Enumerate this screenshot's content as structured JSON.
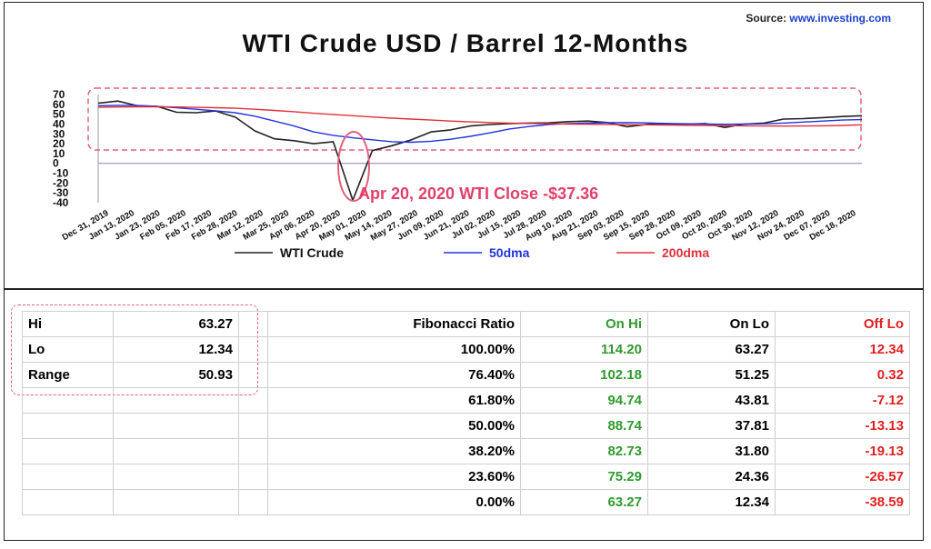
{
  "source": {
    "label": "Source:",
    "url": "www.investing.com"
  },
  "chart_data": {
    "type": "line",
    "title": "WTI Crude USD / Barrel 12-Months",
    "xlabel": "",
    "ylabel": "",
    "ylim": [
      -40,
      70
    ],
    "y_ticks": [
      70,
      60,
      50,
      40,
      30,
      20,
      10,
      0,
      -10,
      -20,
      -30,
      -40
    ],
    "x_tick_labels": [
      "Dec 31, 2019",
      "Jan 13, 2020",
      "Jan 23, 2020",
      "Feb 05, 2020",
      "Feb 17, 2020",
      "Feb 28, 2020",
      "Mar 12, 2020",
      "Mar 25, 2020",
      "Apr 06, 2020",
      "Apr 20, 2020",
      "May 01, 2020",
      "May 14, 2020",
      "May 27, 2020",
      "Jun 09, 2020",
      "Jun 21, 2020",
      "Jul 02, 2020",
      "Jul 15, 2020",
      "Jul 28, 2020",
      "Aug 10, 2020",
      "Aug 21, 2020",
      "Sep 03, 2020",
      "Sep 15, 2020",
      "Sep 28, 2020",
      "Oct 09, 2020",
      "Oct 20, 2020",
      "Oct 30, 2020",
      "Nov 12, 2020",
      "Nov 24, 2020",
      "Dec 07, 2020",
      "Dec 18, 2020"
    ],
    "legend_position": "bottom",
    "annotation": "Apr 20, 2020 WTI Close -$37.36",
    "series": [
      {
        "name": "WTI Crude",
        "color": "#222222",
        "values": [
          61.1,
          63.3,
          58.5,
          58.0,
          52.0,
          51.5,
          53.3,
          47.0,
          33.0,
          25.0,
          23.0,
          20.0,
          22.0,
          -37.4,
          13.0,
          18.0,
          24.0,
          32.0,
          34.0,
          38.0,
          39.5,
          40.5,
          41.0,
          41.2,
          42.5,
          43.0,
          41.5,
          37.3,
          39.6,
          40.2,
          39.8,
          40.5,
          36.5,
          40.0,
          41.0,
          45.0,
          45.5,
          46.5,
          47.6,
          48.5
        ]
      },
      {
        "name": "50dma",
        "color": "#2233dd",
        "values": [
          58.5,
          59.0,
          58.8,
          58.0,
          56.5,
          55.0,
          53.5,
          51.5,
          48.0,
          43.0,
          38.0,
          32.0,
          28.5,
          26.0,
          24.0,
          22.0,
          21.5,
          22.5,
          24.5,
          27.5,
          31.0,
          35.0,
          37.5,
          39.5,
          40.5,
          41.0,
          41.3,
          41.5,
          41.2,
          40.6,
          40.2,
          40.0,
          39.8,
          40.0,
          40.2,
          41.0,
          42.0,
          43.0,
          44.0,
          44.5
        ]
      },
      {
        "name": "200dma",
        "color": "#e0303a",
        "values": [
          57.0,
          57.3,
          57.5,
          57.5,
          57.3,
          57.0,
          56.6,
          56.0,
          55.0,
          53.8,
          52.5,
          51.0,
          49.8,
          48.5,
          47.2,
          46.0,
          45.0,
          44.0,
          43.0,
          42.2,
          41.5,
          41.0,
          40.6,
          40.2,
          40.0,
          39.8,
          39.6,
          39.4,
          39.2,
          39.0,
          38.8,
          38.6,
          38.4,
          38.2,
          38.0,
          37.9,
          38.0,
          38.2,
          38.6,
          39.2
        ]
      }
    ]
  },
  "summary": [
    {
      "label": "Hi",
      "value": "63.27"
    },
    {
      "label": "Lo",
      "value": "12.34"
    },
    {
      "label": "Range",
      "value": "50.93"
    }
  ],
  "fib_table": {
    "headers": {
      "ratio": "Fibonacci Ratio",
      "on_hi": "On Hi",
      "on_lo": "On Lo",
      "off_lo": "Off Lo"
    },
    "rows": [
      {
        "ratio": "100.00%",
        "on_hi": "114.20",
        "on_lo": "63.27",
        "off_lo": "12.34"
      },
      {
        "ratio": "76.40%",
        "on_hi": "102.18",
        "on_lo": "51.25",
        "off_lo": "0.32"
      },
      {
        "ratio": "61.80%",
        "on_hi": "94.74",
        "on_lo": "43.81",
        "off_lo": "-7.12"
      },
      {
        "ratio": "50.00%",
        "on_hi": "88.74",
        "on_lo": "37.81",
        "off_lo": "-13.13"
      },
      {
        "ratio": "38.20%",
        "on_hi": "82.73",
        "on_lo": "31.80",
        "off_lo": "-19.13"
      },
      {
        "ratio": "23.60%",
        "on_hi": "75.29",
        "on_lo": "24.36",
        "off_lo": "-26.57"
      },
      {
        "ratio": "0.00%",
        "on_hi": "63.27",
        "on_lo": "12.34",
        "off_lo": "-38.59"
      }
    ]
  },
  "colors": {
    "green": "#2f9a2f",
    "red": "#e02020",
    "highlight": "#e0607a"
  }
}
